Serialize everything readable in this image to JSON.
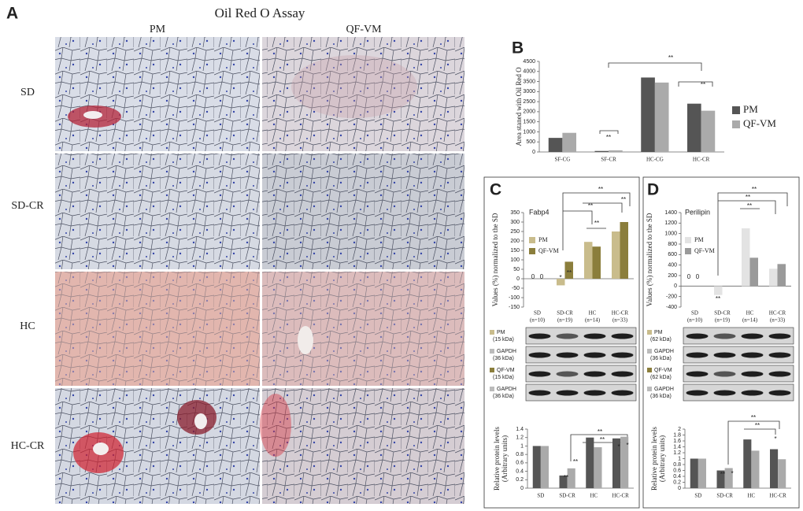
{
  "panel_a": {
    "label": "A",
    "title": "Oil Red O Assay",
    "columns": [
      "PM",
      "QF-VM"
    ],
    "rows": [
      "SD",
      "SD-CR",
      "HC",
      "HC-CR"
    ]
  },
  "chart_data": [
    {
      "type": "bar",
      "label": "B",
      "y_label": [
        "Area staned with Oil Red O"
      ],
      "categories": [
        "SF-CG",
        "SF-CR",
        "HC-CG",
        "HC-CR"
      ],
      "series": [
        {
          "name": "PM",
          "color": "#555555",
          "values": [
            700,
            50,
            3700,
            2400
          ]
        },
        {
          "name": "QF-VM",
          "color": "#aaaaaa",
          "values": [
            950,
            80,
            3450,
            2050
          ]
        }
      ],
      "ylim": [
        0,
        4500
      ],
      "yticks": [
        0,
        500,
        1000,
        1500,
        2000,
        2500,
        3000,
        3500,
        4000,
        4500
      ],
      "legend": "right",
      "annotations": [
        "**",
        "**",
        "**"
      ]
    },
    {
      "type": "bar",
      "label": "C",
      "title": "Fabp4",
      "y_label": [
        "Values (%) normalized to the SD"
      ],
      "categories": [
        "SD",
        "SD-CR",
        "HC",
        "HC-CR"
      ],
      "category_notes": [
        "(n=10)",
        "(n=19)",
        "(n=14)",
        "(n=33)"
      ],
      "series": [
        {
          "name": "PM",
          "color": "#c9bc8c",
          "values": [
            0,
            -35,
            195,
            250
          ]
        },
        {
          "name": "QF-VM",
          "color": "#8b7e3c",
          "values": [
            0,
            90,
            170,
            300
          ]
        }
      ],
      "ylim": [
        -150,
        350
      ],
      "yticks": [
        -150,
        -100,
        -50,
        0,
        50,
        100,
        150,
        200,
        250,
        300,
        350
      ],
      "legend": "left",
      "annotations": [
        "*",
        "**",
        "**",
        "**",
        "**",
        "**",
        "0",
        "0"
      ]
    },
    {
      "type": "bar",
      "y_label": [
        "Relative protein levels",
        "(Arbitrary units)"
      ],
      "categories": [
        "SD",
        "SD-CR",
        "HC",
        "HC-CR"
      ],
      "series": [
        {
          "name": "PM",
          "color": "#555555",
          "values": [
            1.0,
            0.3,
            1.2,
            1.18
          ]
        },
        {
          "name": "QF-VM",
          "color": "#aaaaaa",
          "values": [
            1.0,
            0.47,
            0.97,
            1.22
          ]
        }
      ],
      "ylim": [
        0,
        1.4
      ],
      "yticks": [
        0,
        0.2,
        0.4,
        0.6,
        0.8,
        1,
        1.2,
        1.4
      ],
      "annotations": [
        "**",
        "**",
        "**",
        "**",
        "*",
        "*"
      ]
    },
    {
      "type": "bar",
      "label": "D",
      "title": "Perilipin",
      "y_label": [
        "Values (%) normalized to the SD"
      ],
      "categories": [
        "SD",
        "SD-CR",
        "HC",
        "HC-CR"
      ],
      "category_notes": [
        "(n=10)",
        "(n=19)",
        "(n=14)",
        "(n=33)"
      ],
      "series": [
        {
          "name": "PM",
          "color": "#e3e3e3",
          "values": [
            0,
            -170,
            1100,
            330
          ]
        },
        {
          "name": "QF-VM",
          "color": "#9a9a9a",
          "values": [
            0,
            0,
            540,
            420
          ]
        }
      ],
      "ylim": [
        -400,
        1400
      ],
      "yticks": [
        -400,
        -200,
        0,
        200,
        400,
        600,
        800,
        1000,
        1200,
        1400
      ],
      "legend": "left",
      "annotations": [
        "**",
        "**",
        "**",
        "**",
        "0",
        "0"
      ]
    },
    {
      "type": "bar",
      "y_label": [
        "Relative protein levels",
        "(Arbitrary units)"
      ],
      "categories": [
        "SD",
        "SD-CR",
        "HC",
        "HC-CR"
      ],
      "series": [
        {
          "name": "PM",
          "color": "#555555",
          "values": [
            1.0,
            0.6,
            1.65,
            1.32
          ]
        },
        {
          "name": "QF-VM",
          "color": "#aaaaaa",
          "values": [
            1.0,
            0.68,
            1.27,
            0.98
          ]
        }
      ],
      "ylim": [
        0,
        2
      ],
      "yticks": [
        0,
        0.2,
        0.4,
        0.6,
        0.8,
        1,
        1.2,
        1.4,
        1.6,
        1.8,
        2
      ],
      "annotations": [
        "**",
        "*",
        "**",
        "**",
        "*"
      ]
    }
  ],
  "blots": [
    [
      {
        "name": "PM",
        "size": "(15 kDa)"
      },
      {
        "name": "GAPDH",
        "size": "(36 kDa)"
      },
      {
        "name": "QF-VM",
        "size": "(15 kDa)"
      },
      {
        "name": "GAPDH",
        "size": "(36 kDa)"
      }
    ],
    [
      {
        "name": "PM",
        "size": "(62 kDa)"
      },
      {
        "name": "GAPDH",
        "size": "(36 kDa)"
      },
      {
        "name": "QF-VM",
        "size": "(62 kDa)"
      },
      {
        "name": "GAPDH",
        "size": "(36 kDa)"
      }
    ]
  ]
}
